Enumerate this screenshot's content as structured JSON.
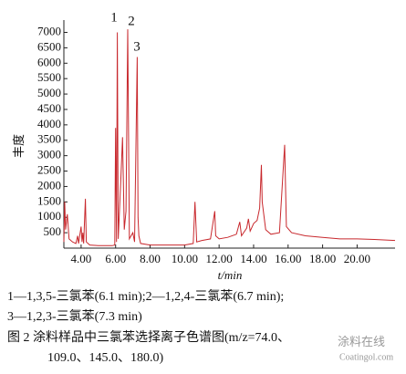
{
  "chart_data": {
    "type": "line",
    "y_label": "丰度",
    "x_label": "t/min",
    "annotations": [
      "1",
      "2",
      "3"
    ],
    "xlim": [
      3.0,
      22.2
    ],
    "ylim": [
      0,
      7400
    ],
    "xticks": [
      {
        "value": 4,
        "label": "4.00"
      },
      {
        "value": 6,
        "label": "6.00"
      },
      {
        "value": 8,
        "label": "8.00"
      },
      {
        "value": 10,
        "label": "10.00"
      },
      {
        "value": 12,
        "label": "12.00"
      },
      {
        "value": 14,
        "label": "14.00"
      },
      {
        "value": 16,
        "label": "16.00"
      },
      {
        "value": 18,
        "label": "18.00"
      },
      {
        "value": 20,
        "label": "20.00"
      }
    ],
    "yticks": [
      500,
      1000,
      1500,
      2000,
      2500,
      3000,
      3500,
      4000,
      4500,
      5000,
      5500,
      6000,
      6500,
      7000
    ],
    "series": [
      {
        "color": "#c8282d",
        "x": [
          3.0,
          3.05,
          3.1,
          3.2,
          3.3,
          3.5,
          3.7,
          3.8,
          3.85,
          4.0,
          4.05,
          4.1,
          4.15,
          4.25,
          4.3,
          4.5,
          5.0,
          5.8,
          5.95,
          6.0,
          6.05,
          6.1,
          6.15,
          6.3,
          6.4,
          6.5,
          6.6,
          6.7,
          6.8,
          7.0,
          7.1,
          7.25,
          7.3,
          7.35,
          7.45,
          8.0,
          10.0,
          10.5,
          10.6,
          10.7,
          11.0,
          11.5,
          11.75,
          11.8,
          12.0,
          12.5,
          13.0,
          13.2,
          13.3,
          13.6,
          13.7,
          13.8,
          14.0,
          14.2,
          14.35,
          14.45,
          14.5,
          14.7,
          15.0,
          15.5,
          15.8,
          15.9,
          16.2,
          17.0,
          18.0,
          19.0,
          20.0,
          21.0,
          22.2
        ],
        "values": [
          200,
          1500,
          600,
          1100,
          300,
          200,
          150,
          400,
          150,
          700,
          200,
          500,
          150,
          1600,
          200,
          100,
          80,
          80,
          100,
          3900,
          200,
          7000,
          300,
          2200,
          3600,
          600,
          1200,
          7100,
          300,
          500,
          200,
          6200,
          1000,
          400,
          150,
          100,
          100,
          150,
          1500,
          200,
          250,
          300,
          1200,
          400,
          300,
          350,
          450,
          850,
          400,
          650,
          950,
          550,
          800,
          900,
          1300,
          2700,
          1500,
          600,
          450,
          500,
          3350,
          700,
          500,
          400,
          350,
          300,
          300,
          280,
          250
        ]
      }
    ]
  },
  "caption": [
    "1—1,3,5-三氯苯(6.1 min);2—1,2,4-三氯苯(6.7 min);",
    "3—1,2,3-三氯苯(7.3 min)",
    "图 2   涂料样品中三氯苯选择离子色谱图(m/z=74.0、",
    "109.0、145.0、180.0)"
  ],
  "watermark": [
    "涂料在线",
    "Coatingol.com"
  ]
}
